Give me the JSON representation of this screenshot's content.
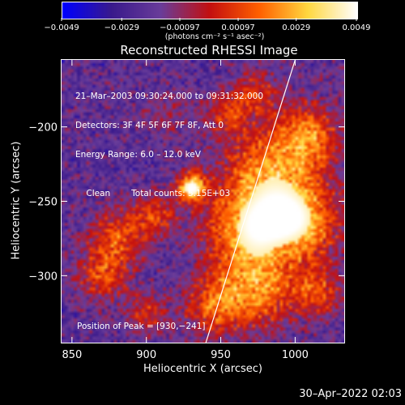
{
  "chart_data": {
    "type": "heatmap",
    "title": "Reconstructed RHESSI Image",
    "xlabel": "Heliocentric X (arcsec)",
    "ylabel": "Heliocentric Y (arcsec)",
    "xlim": [
      843,
      1033
    ],
    "ylim": [
      -345,
      -155
    ],
    "x_ticks": [
      850,
      900,
      950,
      1000
    ],
    "y_ticks": [
      -200,
      -250,
      -300
    ],
    "x_tick_labels": [
      "850",
      "900",
      "950",
      "1000"
    ],
    "y_tick_labels": [
      "−200",
      "−250",
      "−300"
    ],
    "colorbar": {
      "range": [
        -0.0049,
        0.0049
      ],
      "ticks": [
        -0.0049,
        -0.0029,
        -0.00097,
        0.00097,
        0.0029,
        0.0049
      ],
      "tick_labels": [
        "−0.0049",
        "−0.0029",
        "−0.00097",
        "0.00097",
        "0.0029",
        "0.0049"
      ],
      "unit_label": "(photons cm⁻² s⁻¹ asec⁻²)",
      "colors": [
        "#0000ff",
        "#3a1a8c",
        "#6a3d9a",
        "#c41010",
        "#ff6000",
        "#ffd840",
        "#ffffff"
      ]
    },
    "annotations": {
      "time_range": "21–Mar–2003 09:30:24.000 to 09:31:32.000",
      "detectors": "Detectors: 3F 4F 5F 6F 7F 8F, Att 0",
      "energy_range": "Energy Range: 6.0 – 12.0 keV",
      "algorithm": "Clean",
      "total_counts": "Total counts: 5.15E+03",
      "peak": "Position of Peak = [930,−241]"
    },
    "peak": [
      930,
      -241
    ],
    "limb_line": [
      [
        1000,
        -155
      ],
      [
        940,
        -345
      ]
    ],
    "sources": [
      {
        "x": 930,
        "y": -241,
        "amp": 1.0,
        "sigma": 7
      },
      {
        "x": 985,
        "y": -230,
        "amp": 0.7,
        "sigma": 24
      },
      {
        "x": 968,
        "y": -270,
        "amp": 0.75,
        "sigma": 20
      },
      {
        "x": 1005,
        "y": -265,
        "amp": 0.7,
        "sigma": 18
      },
      {
        "x": 1010,
        "y": -205,
        "amp": 0.55,
        "sigma": 14
      },
      {
        "x": 975,
        "y": -310,
        "amp": 0.65,
        "sigma": 18
      },
      {
        "x": 945,
        "y": -320,
        "amp": 0.55,
        "sigma": 14
      },
      {
        "x": 1015,
        "y": -310,
        "amp": 0.5,
        "sigma": 12
      },
      {
        "x": 880,
        "y": -275,
        "amp": 0.55,
        "sigma": 13
      },
      {
        "x": 870,
        "y": -300,
        "amp": 0.5,
        "sigma": 12
      },
      {
        "x": 905,
        "y": -260,
        "amp": 0.5,
        "sigma": 10
      },
      {
        "x": 900,
        "y": -325,
        "amp": 0.4,
        "sigma": 10
      },
      {
        "x": 955,
        "y": -190,
        "amp": 0.45,
        "sigma": 10
      },
      {
        "x": 975,
        "y": -175,
        "amp": 0.4,
        "sigma": 10
      },
      {
        "x": 915,
        "y": -190,
        "amp": 0.2,
        "sigma": 12
      }
    ]
  },
  "footer": {
    "date": "30–Apr–2022 02:03"
  }
}
